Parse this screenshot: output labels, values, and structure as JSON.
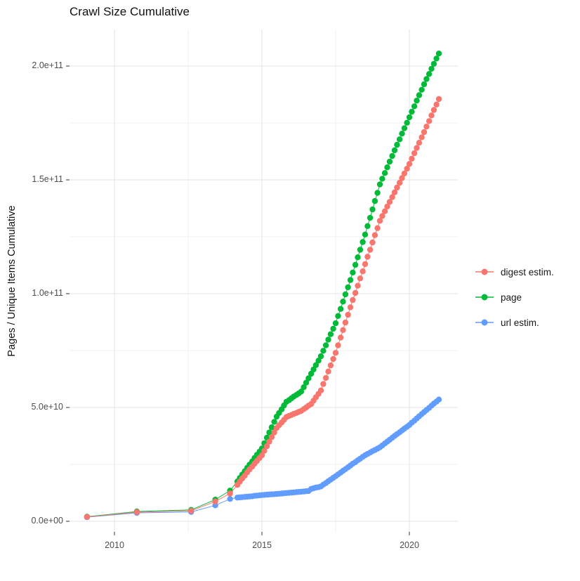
{
  "title": "Crawl Size Cumulative",
  "y_axis": {
    "label": "Pages / Unique Items Cumulative",
    "ticks": [
      {
        "label": "0.0e+00",
        "value": 0
      },
      {
        "label": "5.0e+10",
        "value": 50
      },
      {
        "label": "1.0e+11",
        "value": 100
      },
      {
        "label": "1.5e+11",
        "value": 150
      },
      {
        "label": "2.0e+11",
        "value": 200
      }
    ],
    "minor_values": [
      25,
      75,
      125,
      175
    ]
  },
  "x_axis": {
    "ticks": [
      {
        "label": "2010",
        "value": 2010
      },
      {
        "label": "2015",
        "value": 2015
      },
      {
        "label": "2020",
        "value": 2020
      }
    ],
    "minor_values": [
      2012.5,
      2017.5
    ]
  },
  "legend": {
    "position": "right",
    "items": [
      {
        "label": "digest estim.",
        "color": "#F8766D"
      },
      {
        "label": "page",
        "color": "#00BA38"
      },
      {
        "label": "url estim.",
        "color": "#619CFF"
      }
    ]
  },
  "chart_data": {
    "type": "line",
    "title": "Crawl Size Cumulative",
    "xlabel": "",
    "ylabel": "Pages / Unique Items Cumulative",
    "value_unit": "pages, in units of 1e9 (billions)",
    "x_unit": "decimal year",
    "xlim": [
      2008.5,
      2021.6
    ],
    "ylim": [
      0,
      216
    ],
    "grid": true,
    "legend_position": "right",
    "x": [
      2009.07,
      2010.76,
      2012.6,
      2013.42,
      2013.92,
      2014.17,
      2014.25,
      2014.33,
      2014.42,
      2014.5,
      2014.58,
      2014.67,
      2014.75,
      2014.83,
      2014.92,
      2015.0,
      2015.08,
      2015.17,
      2015.25,
      2015.33,
      2015.42,
      2015.5,
      2015.58,
      2015.67,
      2015.75,
      2015.83,
      2015.92,
      2016.0,
      2016.08,
      2016.17,
      2016.25,
      2016.33,
      2016.42,
      2016.5,
      2016.58,
      2016.67,
      2016.75,
      2016.83,
      2016.92,
      2017.0,
      2017.08,
      2017.17,
      2017.25,
      2017.33,
      2017.42,
      2017.5,
      2017.58,
      2017.67,
      2017.75,
      2017.83,
      2017.92,
      2018.0,
      2018.08,
      2018.17,
      2018.25,
      2018.33,
      2018.42,
      2018.5,
      2018.58,
      2018.67,
      2018.75,
      2018.83,
      2018.92,
      2019.0,
      2019.08,
      2019.17,
      2019.25,
      2019.33,
      2019.42,
      2019.5,
      2019.58,
      2019.67,
      2019.75,
      2019.83,
      2019.92,
      2020.0,
      2020.08,
      2020.17,
      2020.25,
      2020.33,
      2020.42,
      2020.5,
      2020.58,
      2020.67,
      2020.75,
      2020.83,
      2020.92,
      2021.0
    ],
    "series": [
      {
        "name": "digest estim.",
        "color": "#F8766D",
        "values": [
          1.9,
          4.0,
          4.6,
          8.7,
          12.2,
          16.0,
          17.4,
          18.8,
          20.1,
          21.5,
          22.8,
          24.0,
          25.3,
          26.5,
          27.8,
          29.0,
          31.0,
          33.0,
          35.0,
          37.0,
          39.0,
          41.0,
          42.2,
          43.4,
          44.6,
          45.8,
          46.3,
          46.7,
          47.2,
          47.6,
          48.1,
          48.5,
          49.3,
          50.0,
          50.8,
          51.5,
          53.0,
          54.5,
          56.0,
          57.5,
          60.3,
          63.0,
          65.8,
          68.5,
          71.3,
          74.0,
          77.3,
          80.7,
          84.0,
          87.3,
          90.7,
          94.0,
          97.2,
          100.3,
          103.5,
          106.7,
          109.8,
          113.0,
          116.2,
          119.3,
          122.5,
          125.7,
          128.8,
          132.0,
          134.1,
          136.2,
          138.3,
          140.3,
          142.4,
          144.5,
          146.6,
          148.7,
          150.8,
          152.8,
          154.9,
          157.0,
          159.3,
          161.7,
          164.0,
          166.3,
          168.7,
          171.0,
          173.4,
          175.8,
          178.3,
          180.7,
          183.1,
          185.5
        ]
      },
      {
        "name": "page",
        "color": "#00BA38",
        "values": [
          2.0,
          4.3,
          5.0,
          9.5,
          13.5,
          17.5,
          19.0,
          20.5,
          22.0,
          23.5,
          24.9,
          26.3,
          27.8,
          29.2,
          30.6,
          32.0,
          34.3,
          36.7,
          39.0,
          41.3,
          43.7,
          46.0,
          47.6,
          49.2,
          50.9,
          52.5,
          53.2,
          54.0,
          54.8,
          55.5,
          56.2,
          57.0,
          58.9,
          60.9,
          62.8,
          64.8,
          66.7,
          68.6,
          70.6,
          72.5,
          74.9,
          77.3,
          79.8,
          82.2,
          84.6,
          87.0,
          90.2,
          93.3,
          96.5,
          99.7,
          102.8,
          106.0,
          109.3,
          112.7,
          116.0,
          119.3,
          122.7,
          126.0,
          129.7,
          133.3,
          137.0,
          140.7,
          144.3,
          148.0,
          150.5,
          153.0,
          155.5,
          158.0,
          160.5,
          163.0,
          165.4,
          167.8,
          170.3,
          172.7,
          175.1,
          177.5,
          179.9,
          182.3,
          184.8,
          187.2,
          189.6,
          192.0,
          194.3,
          196.5,
          198.8,
          201.0,
          203.3,
          205.5
        ]
      },
      {
        "name": "url estim.",
        "color": "#619CFF",
        "values": [
          1.8,
          3.7,
          4.1,
          7.0,
          9.8,
          10.4,
          10.5,
          10.6,
          10.7,
          10.8,
          10.9,
          11.0,
          11.2,
          11.3,
          11.4,
          11.5,
          11.6,
          11.7,
          11.8,
          11.85,
          11.9,
          12.0,
          12.1,
          12.2,
          12.3,
          12.4,
          12.5,
          12.6,
          12.7,
          12.8,
          12.9,
          13.0,
          13.1,
          13.2,
          13.3,
          14.2,
          14.5,
          14.8,
          15.0,
          15.3,
          16.1,
          16.8,
          17.6,
          18.3,
          19.1,
          19.8,
          20.6,
          21.4,
          22.2,
          22.9,
          23.7,
          24.5,
          25.3,
          26.0,
          26.8,
          27.5,
          28.3,
          29.0,
          29.6,
          30.2,
          30.8,
          31.3,
          31.9,
          32.5,
          33.3,
          34.2,
          35.0,
          35.8,
          36.7,
          37.5,
          38.3,
          39.1,
          39.9,
          40.7,
          41.5,
          42.3,
          43.3,
          44.2,
          45.2,
          46.1,
          47.1,
          48.0,
          48.9,
          49.8,
          50.8,
          51.7,
          52.6,
          53.5
        ]
      }
    ]
  }
}
